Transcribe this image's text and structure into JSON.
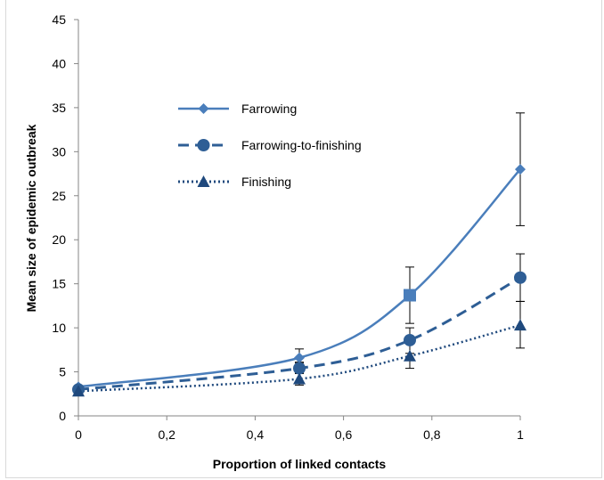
{
  "chart_data": {
    "type": "line",
    "title": "",
    "xlabel": "Proportion  of linked contacts",
    "ylabel": "Mean size of epidemic outbreak",
    "x_ticks": [
      "0",
      "0,2",
      "0,4",
      "0,6",
      "0,8",
      "1"
    ],
    "y_ticks": [
      "0",
      "5",
      "10",
      "15",
      "20",
      "25",
      "30",
      "35",
      "40",
      "45"
    ],
    "xlim": [
      0,
      1
    ],
    "ylim": [
      0,
      45
    ],
    "grid": false,
    "legend_position": "upper-left inside",
    "series": [
      {
        "name": "Farrowing",
        "line_style": "solid",
        "marker": "diamond",
        "color": "#4a7ebb",
        "x": [
          0,
          0.5,
          0.75,
          1
        ],
        "y": [
          3.3,
          6.6,
          13.7,
          28.0
        ],
        "err_low": [
          null,
          6.0,
          10.5,
          21.6
        ],
        "err_high": [
          null,
          7.6,
          16.9,
          34.4
        ]
      },
      {
        "name": "Farrowing-to-finishing",
        "line_style": "dashed",
        "marker": "circle",
        "color": "#2e5e95",
        "x": [
          0,
          0.5,
          0.75,
          1
        ],
        "y": [
          3.0,
          5.4,
          8.6,
          15.7
        ],
        "err_low": [
          null,
          4.8,
          7.1,
          13.0
        ],
        "err_high": [
          null,
          6.1,
          10.0,
          18.4
        ]
      },
      {
        "name": "Finishing",
        "line_style": "dotted",
        "marker": "triangle",
        "color": "#1f497d",
        "x": [
          0,
          0.5,
          0.75,
          1
        ],
        "y": [
          2.8,
          4.2,
          6.8,
          10.3
        ],
        "err_low": [
          null,
          3.5,
          5.4,
          7.7
        ],
        "err_high": [
          null,
          4.9,
          8.2,
          13.0
        ]
      }
    ]
  }
}
